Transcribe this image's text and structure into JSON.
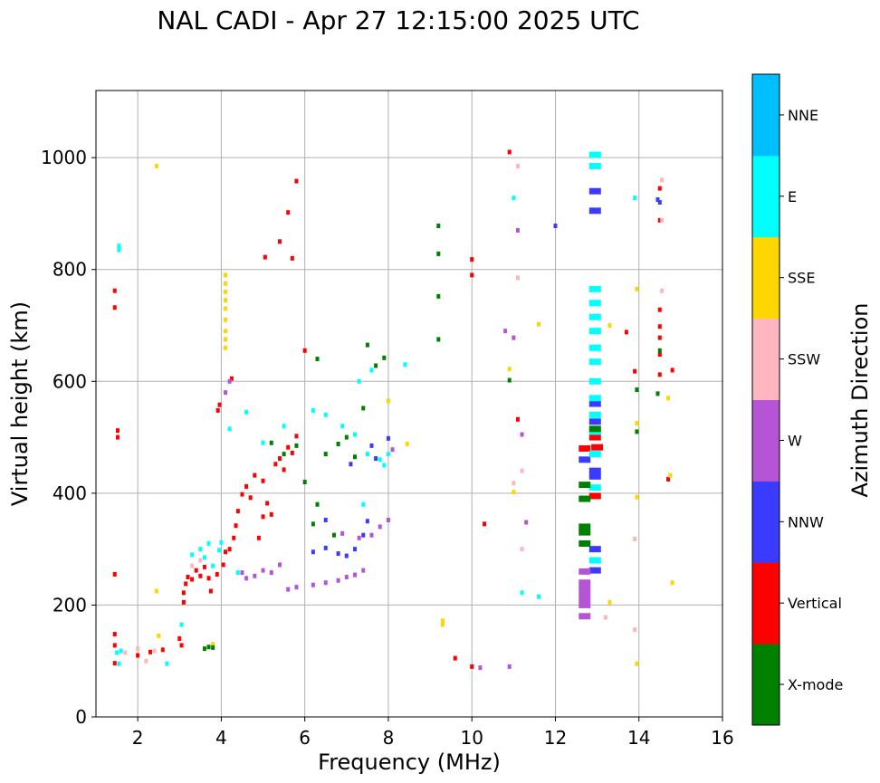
{
  "chart_data": {
    "type": "scatter",
    "title": "NAL CADI - Apr 27 12:15:00 2025 UTC",
    "xlabel": "Frequency (MHz)",
    "ylabel": "Virtual height (km)",
    "xlim": [
      1,
      16
    ],
    "ylim": [
      0,
      1120
    ],
    "xticks": [
      2,
      4,
      6,
      8,
      10,
      12,
      14,
      16
    ],
    "yticks": [
      0,
      200,
      400,
      600,
      800,
      1000
    ],
    "grid": true,
    "colorbar": {
      "label": "Azimuth Direction",
      "categories": [
        "X-mode",
        "Vertical",
        "NNW",
        "W",
        "SSW",
        "SSE",
        "E",
        "NNE"
      ],
      "colors": [
        "#008000",
        "#ff0000",
        "#3b3bff",
        "#b555d6",
        "#ffb6c1",
        "#ffd700",
        "#00ffff",
        "#00bfff"
      ]
    },
    "series": [
      {
        "name": "Vertical",
        "points": [
          [
            1.45,
            96
          ],
          [
            1.45,
            128
          ],
          [
            1.45,
            148
          ],
          [
            1.52,
            500
          ],
          [
            1.52,
            512
          ],
          [
            1.45,
            255
          ],
          [
            1.45,
            732
          ],
          [
            1.45,
            762
          ],
          [
            2.0,
            110
          ],
          [
            2.3,
            116
          ],
          [
            2.6,
            120
          ],
          [
            3.0,
            140
          ],
          [
            3.05,
            128
          ],
          [
            3.1,
            205
          ],
          [
            3.1,
            222
          ],
          [
            3.15,
            238
          ],
          [
            3.2,
            250
          ],
          [
            3.3,
            246
          ],
          [
            3.4,
            262
          ],
          [
            3.5,
            252
          ],
          [
            3.6,
            268
          ],
          [
            3.7,
            248
          ],
          [
            3.75,
            225
          ],
          [
            3.9,
            255
          ],
          [
            3.92,
            548
          ],
          [
            3.96,
            558
          ],
          [
            4.05,
            272
          ],
          [
            4.1,
            295
          ],
          [
            4.2,
            300
          ],
          [
            4.25,
            605
          ],
          [
            4.3,
            320
          ],
          [
            4.35,
            342
          ],
          [
            4.4,
            368
          ],
          [
            4.5,
            398
          ],
          [
            4.6,
            412
          ],
          [
            4.7,
            392
          ],
          [
            4.8,
            432
          ],
          [
            5.0,
            422
          ],
          [
            5.1,
            382
          ],
          [
            5.2,
            362
          ],
          [
            5.3,
            452
          ],
          [
            5.4,
            462
          ],
          [
            5.5,
            442
          ],
          [
            5.6,
            482
          ],
          [
            5.7,
            472
          ],
          [
            5.8,
            502
          ],
          [
            4.9,
            320
          ],
          [
            5.0,
            358
          ],
          [
            5.05,
            822
          ],
          [
            5.4,
            850
          ],
          [
            5.6,
            902
          ],
          [
            5.7,
            820
          ],
          [
            5.8,
            958
          ],
          [
            6.0,
            655
          ],
          [
            10.0,
            90
          ],
          [
            10.0,
            790
          ],
          [
            10.0,
            818
          ],
          [
            10.3,
            345
          ],
          [
            10.9,
            1010
          ],
          [
            11.1,
            532
          ],
          [
            12.7,
            480
          ],
          [
            12.95,
            500
          ],
          [
            12.95,
            395
          ],
          [
            13.0,
            482
          ],
          [
            13.7,
            688
          ],
          [
            13.9,
            618
          ],
          [
            14.5,
            945
          ],
          [
            14.5,
            888
          ],
          [
            14.5,
            728
          ],
          [
            14.5,
            698
          ],
          [
            14.5,
            678
          ],
          [
            14.5,
            648
          ],
          [
            14.5,
            612
          ],
          [
            14.7,
            425
          ],
          [
            14.8,
            620
          ],
          [
            9.6,
            105
          ]
        ]
      },
      {
        "name": "NNW",
        "points": [
          [
            6.2,
            295
          ],
          [
            6.5,
            302
          ],
          [
            6.8,
            292
          ],
          [
            7.0,
            288
          ],
          [
            7.2,
            300
          ],
          [
            7.4,
            325
          ],
          [
            7.5,
            350
          ],
          [
            7.6,
            485
          ],
          [
            7.7,
            462
          ],
          [
            6.5,
            352
          ],
          [
            7.1,
            452
          ],
          [
            8.0,
            498
          ],
          [
            12.0,
            878
          ],
          [
            12.7,
            460
          ],
          [
            12.95,
            940
          ],
          [
            12.95,
            905
          ],
          [
            12.95,
            560
          ],
          [
            12.95,
            528
          ],
          [
            12.95,
            440
          ],
          [
            12.95,
            430
          ],
          [
            12.95,
            300
          ],
          [
            12.95,
            262
          ],
          [
            14.45,
            925
          ],
          [
            14.5,
            920
          ]
        ]
      },
      {
        "name": "W",
        "points": [
          [
            4.5,
            258
          ],
          [
            4.8,
            252
          ],
          [
            5.0,
            262
          ],
          [
            5.2,
            258
          ],
          [
            5.6,
            228
          ],
          [
            5.8,
            232
          ],
          [
            6.2,
            236
          ],
          [
            6.5,
            240
          ],
          [
            6.8,
            244
          ],
          [
            7.0,
            250
          ],
          [
            7.2,
            254
          ],
          [
            7.4,
            262
          ],
          [
            6.9,
            328
          ],
          [
            7.3,
            320
          ],
          [
            7.6,
            325
          ],
          [
            7.8,
            340
          ],
          [
            8.0,
            352
          ],
          [
            4.2,
            600
          ],
          [
            4.1,
            580
          ],
          [
            4.6,
            248
          ],
          [
            5.4,
            272
          ],
          [
            10.2,
            88
          ],
          [
            10.9,
            90
          ],
          [
            11.0,
            678
          ],
          [
            11.2,
            505
          ],
          [
            11.3,
            348
          ],
          [
            10.8,
            690
          ],
          [
            11.1,
            870
          ],
          [
            12.7,
            260
          ],
          [
            12.7,
            240
          ],
          [
            12.7,
            220
          ],
          [
            12.7,
            200
          ],
          [
            12.7,
            180
          ],
          [
            12.7,
            210
          ],
          [
            12.7,
            230
          ],
          [
            8.1,
            478
          ]
        ]
      },
      {
        "name": "SSW",
        "points": [
          [
            1.7,
            115
          ],
          [
            2.0,
            122
          ],
          [
            2.2,
            100
          ],
          [
            2.4,
            118
          ],
          [
            3.3,
            270
          ],
          [
            3.5,
            280
          ],
          [
            11.1,
            985
          ],
          [
            11.1,
            785
          ],
          [
            11.2,
            440
          ],
          [
            11.2,
            300
          ],
          [
            13.2,
            178
          ],
          [
            13.9,
            318
          ],
          [
            13.9,
            156
          ],
          [
            14.55,
            960
          ],
          [
            14.55,
            888
          ],
          [
            14.55,
            762
          ],
          [
            11.0,
            418
          ]
        ]
      },
      {
        "name": "SSE",
        "points": [
          [
            2.45,
            985
          ],
          [
            2.5,
            145
          ],
          [
            3.8,
            130
          ],
          [
            4.1,
            790
          ],
          [
            4.1,
            775
          ],
          [
            4.1,
            760
          ],
          [
            4.1,
            745
          ],
          [
            4.1,
            730
          ],
          [
            4.1,
            710
          ],
          [
            4.1,
            690
          ],
          [
            4.1,
            675
          ],
          [
            4.1,
            660
          ],
          [
            8.0,
            565
          ],
          [
            8.45,
            488
          ],
          [
            9.3,
            165
          ],
          [
            9.3,
            172
          ],
          [
            10.9,
            622
          ],
          [
            11.0,
            402
          ],
          [
            11.6,
            702
          ],
          [
            13.3,
            700
          ],
          [
            13.3,
            205
          ],
          [
            13.95,
            765
          ],
          [
            13.95,
            525
          ],
          [
            13.95,
            393
          ],
          [
            13.95,
            95
          ],
          [
            14.7,
            570
          ],
          [
            14.75,
            432
          ],
          [
            14.8,
            240
          ],
          [
            2.45,
            225
          ]
        ]
      },
      {
        "name": "E",
        "points": [
          [
            1.5,
            115
          ],
          [
            1.55,
            95
          ],
          [
            1.6,
            118
          ],
          [
            1.55,
            842
          ],
          [
            1.55,
            835
          ],
          [
            2.7,
            95
          ],
          [
            3.3,
            290
          ],
          [
            3.5,
            300
          ],
          [
            3.6,
            285
          ],
          [
            3.7,
            310
          ],
          [
            3.8,
            270
          ],
          [
            3.95,
            298
          ],
          [
            4.0,
            312
          ],
          [
            4.2,
            515
          ],
          [
            4.6,
            545
          ],
          [
            5.0,
            490
          ],
          [
            5.5,
            520
          ],
          [
            6.2,
            548
          ],
          [
            6.5,
            540
          ],
          [
            6.9,
            520
          ],
          [
            7.2,
            505
          ],
          [
            7.5,
            470
          ],
          [
            7.8,
            460
          ],
          [
            8.0,
            470
          ],
          [
            7.9,
            450
          ],
          [
            7.3,
            600
          ],
          [
            7.4,
            380
          ],
          [
            7.6,
            620
          ],
          [
            8.4,
            630
          ],
          [
            11.0,
            928
          ],
          [
            11.2,
            222
          ],
          [
            11.6,
            215
          ],
          [
            13.9,
            928
          ],
          [
            12.95,
            1005
          ],
          [
            12.95,
            985
          ],
          [
            12.95,
            765
          ],
          [
            12.95,
            740
          ],
          [
            12.95,
            715
          ],
          [
            12.95,
            690
          ],
          [
            12.95,
            660
          ],
          [
            12.95,
            635
          ],
          [
            12.95,
            600
          ],
          [
            12.95,
            570
          ],
          [
            12.95,
            540
          ],
          [
            12.95,
            510
          ],
          [
            12.95,
            470
          ],
          [
            12.95,
            410
          ],
          [
            12.95,
            280
          ],
          [
            3.05,
            165
          ],
          [
            4.4,
            258
          ]
        ]
      },
      {
        "name": "X-mode",
        "points": [
          [
            3.6,
            122
          ],
          [
            3.7,
            125
          ],
          [
            3.8,
            124
          ],
          [
            5.2,
            490
          ],
          [
            5.5,
            470
          ],
          [
            5.8,
            485
          ],
          [
            6.0,
            420
          ],
          [
            6.2,
            345
          ],
          [
            6.3,
            380
          ],
          [
            6.5,
            470
          ],
          [
            6.8,
            488
          ],
          [
            7.0,
            500
          ],
          [
            7.2,
            465
          ],
          [
            7.4,
            552
          ],
          [
            7.5,
            665
          ],
          [
            7.7,
            628
          ],
          [
            7.9,
            642
          ],
          [
            9.2,
            878
          ],
          [
            9.2,
            828
          ],
          [
            9.2,
            752
          ],
          [
            9.2,
            675
          ],
          [
            10.9,
            602
          ],
          [
            12.7,
            390
          ],
          [
            12.7,
            340
          ],
          [
            12.7,
            330
          ],
          [
            12.7,
            310
          ],
          [
            12.7,
            415
          ],
          [
            12.95,
            515
          ],
          [
            13.95,
            585
          ],
          [
            13.95,
            510
          ],
          [
            14.45,
            578
          ],
          [
            14.5,
            655
          ],
          [
            6.7,
            325
          ],
          [
            6.3,
            640
          ]
        ]
      }
    ]
  }
}
